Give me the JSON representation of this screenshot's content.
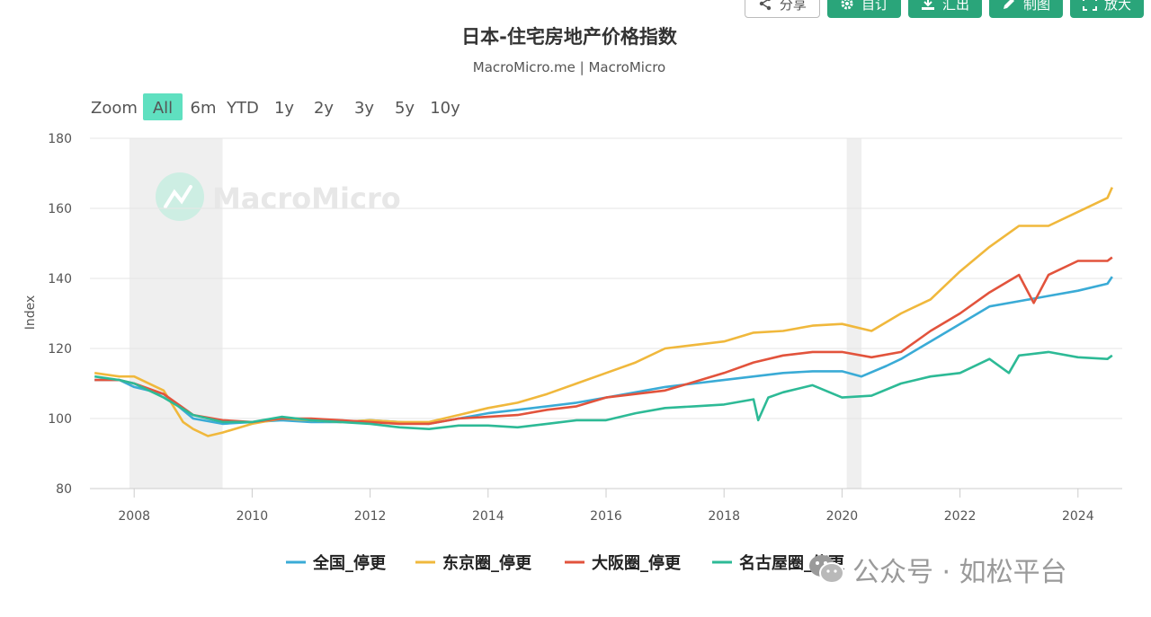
{
  "toolbar": {
    "buttons": [
      {
        "label": "分享",
        "icon": "share-icon",
        "style": "outline"
      },
      {
        "label": "自订",
        "icon": "gear-icon",
        "style": "filled"
      },
      {
        "label": "汇出",
        "icon": "download-icon",
        "style": "filled"
      },
      {
        "label": "制图",
        "icon": "pencil-icon",
        "style": "filled"
      },
      {
        "label": "放大",
        "icon": "expand-icon",
        "style": "filled"
      }
    ]
  },
  "zoom": {
    "label": "Zoom",
    "options": [
      "All",
      "6m",
      "YTD",
      "1y",
      "2y",
      "3y",
      "5y",
      "10y"
    ],
    "selected": "All"
  },
  "watermark": {
    "brand": "MacroMicro"
  },
  "wechat_overlay": {
    "text": "公众号 · 如松平台"
  },
  "colors": {
    "national": "#3aabd6",
    "tokyo": "#f0b83c",
    "osaka": "#e2533c",
    "nagoya": "#2dba96",
    "accent": "#2aa57a",
    "zoom_selected": "#5fe0c0",
    "recession": "#efefef"
  },
  "chart_data": {
    "type": "line",
    "title": "日本-住宅房地产价格指数",
    "subtitle": "MacroMicro.me | MacroMicro",
    "xlabel": "",
    "ylabel": "Index",
    "xlim": [
      2007.25,
      2024.75
    ],
    "ylim": [
      80,
      180
    ],
    "xticks": [
      2008,
      2010,
      2012,
      2014,
      2016,
      2018,
      2020,
      2022,
      2024
    ],
    "yticks": [
      80,
      100,
      120,
      140,
      160,
      180
    ],
    "grid": true,
    "legend_position": "bottom",
    "recession_bands": [
      [
        2007.92,
        2009.5
      ],
      [
        2020.08,
        2020.33
      ]
    ],
    "series": [
      {
        "name": "全国_停更",
        "color": "#3aabd6",
        "x": [
          2007.33,
          2007.75,
          2008.0,
          2008.5,
          2009.0,
          2009.5,
          2010.0,
          2010.5,
          2011.0,
          2011.5,
          2012.0,
          2012.5,
          2013.0,
          2013.5,
          2014.0,
          2014.5,
          2015.0,
          2015.5,
          2016.0,
          2016.5,
          2017.0,
          2017.5,
          2018.0,
          2018.5,
          2019.0,
          2019.5,
          2020.0,
          2020.33,
          2020.75,
          2021.0,
          2021.5,
          2022.0,
          2022.5,
          2023.0,
          2023.5,
          2024.0,
          2024.5,
          2024.58
        ],
        "y": [
          111,
          111,
          109,
          107,
          100,
          98.5,
          99,
          99.5,
          99,
          99,
          99.5,
          99,
          98.5,
          100,
          101.5,
          102.5,
          103.5,
          104.5,
          106,
          107.5,
          109,
          110,
          111,
          112,
          113,
          113.5,
          113.5,
          112,
          115,
          117,
          122,
          127,
          132,
          133.5,
          135,
          136.5,
          138.5,
          140.5
        ]
      },
      {
        "name": "东京圈_停更",
        "color": "#f0b83c",
        "x": [
          2007.33,
          2007.75,
          2008.0,
          2008.5,
          2008.83,
          2009.0,
          2009.25,
          2009.5,
          2010.0,
          2010.5,
          2011.0,
          2011.5,
          2012.0,
          2012.5,
          2013.0,
          2013.5,
          2014.0,
          2014.5,
          2015.0,
          2015.5,
          2016.0,
          2016.5,
          2017.0,
          2017.5,
          2018.0,
          2018.5,
          2019.0,
          2019.5,
          2020.0,
          2020.5,
          2021.0,
          2021.5,
          2022.0,
          2022.5,
          2023.0,
          2023.5,
          2024.0,
          2024.5,
          2024.58
        ],
        "y": [
          113,
          112,
          112,
          108,
          99,
          97,
          95,
          96,
          98.5,
          100,
          99.5,
          99,
          99.5,
          99,
          99,
          101,
          103,
          104.5,
          107,
          110,
          113,
          116,
          120,
          121,
          122,
          124.5,
          125,
          126.5,
          127,
          125,
          130,
          134,
          142,
          149,
          155,
          155,
          159,
          163,
          166
        ]
      },
      {
        "name": "大阪圈_停更",
        "color": "#e2533c",
        "x": [
          2007.33,
          2007.75,
          2008.0,
          2008.5,
          2009.0,
          2009.5,
          2010.0,
          2010.5,
          2011.0,
          2011.5,
          2012.0,
          2012.5,
          2013.0,
          2013.5,
          2014.0,
          2014.5,
          2015.0,
          2015.5,
          2016.0,
          2016.5,
          2017.0,
          2017.5,
          2018.0,
          2018.5,
          2019.0,
          2019.5,
          2020.0,
          2020.5,
          2021.0,
          2021.5,
          2022.0,
          2022.5,
          2023.0,
          2023.25,
          2023.5,
          2024.0,
          2024.5,
          2024.58
        ],
        "y": [
          111,
          111,
          110,
          107,
          101,
          99.5,
          99,
          100,
          100,
          99.5,
          99,
          98.5,
          98.5,
          100,
          100.5,
          101,
          102.5,
          103.5,
          106,
          107,
          108,
          110.5,
          113,
          116,
          118,
          119,
          119,
          117.5,
          119,
          125,
          130,
          136,
          141,
          133,
          141,
          145,
          145,
          146
        ]
      },
      {
        "name": "名古屋圈_停更",
        "color": "#2dba96",
        "x": [
          2007.33,
          2007.75,
          2008.0,
          2008.5,
          2009.0,
          2009.5,
          2010.0,
          2010.5,
          2011.0,
          2011.5,
          2012.0,
          2012.5,
          2013.0,
          2013.5,
          2014.0,
          2014.5,
          2015.0,
          2015.5,
          2016.0,
          2016.5,
          2017.0,
          2017.5,
          2018.0,
          2018.5,
          2018.58,
          2018.75,
          2019.0,
          2019.5,
          2020.0,
          2020.5,
          2021.0,
          2021.5,
          2022.0,
          2022.5,
          2022.83,
          2023.0,
          2023.5,
          2024.0,
          2024.5,
          2024.58
        ],
        "y": [
          112,
          111,
          110,
          106,
          101,
          99,
          99,
          100.5,
          99.5,
          99,
          98.5,
          97.5,
          97,
          98,
          98,
          97.5,
          98.5,
          99.5,
          99.5,
          101.5,
          103,
          103.5,
          104,
          105.5,
          99.5,
          106,
          107.5,
          109.5,
          106,
          106.5,
          110,
          112,
          113,
          117,
          113,
          118,
          119,
          117.5,
          117,
          118
        ]
      }
    ]
  }
}
